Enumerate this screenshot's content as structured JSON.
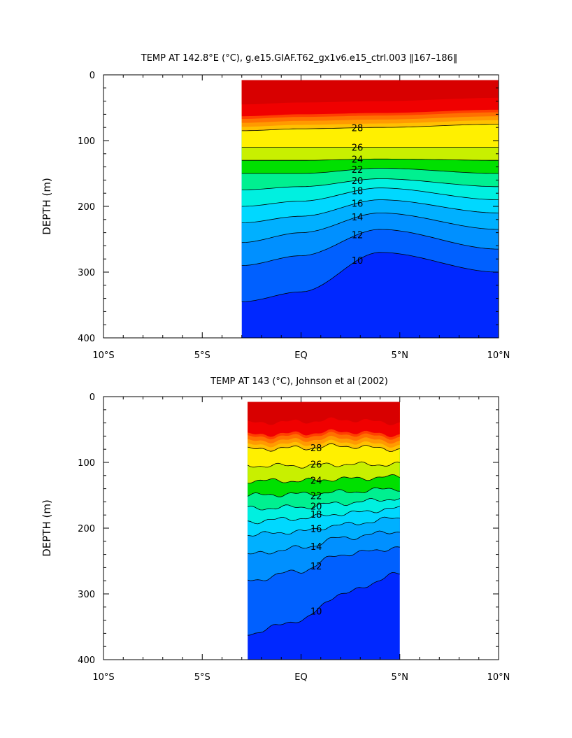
{
  "chart_data": [
    {
      "type": "heatmap",
      "title": "TEMP AT 142.8°E (°C), g.e15.GIAF.T62_gx1v6.e15_ctrl.003 ‖167–186‖",
      "ylabel": "DEPTH (m)",
      "xlabel": "",
      "x_ticks": [
        "10°S",
        "5°S",
        "EQ",
        "5°N",
        "10°N"
      ],
      "y_ticks": [
        "0",
        "100",
        "200",
        "300",
        "400"
      ],
      "xlim": [
        -10,
        10
      ],
      "ylim": [
        0,
        400
      ],
      "y_inverted": true,
      "data_lat_range": [
        -3,
        10
      ],
      "contour_labels": [
        "28",
        "26",
        "24",
        "22",
        "20",
        "18",
        "16",
        "14",
        "12",
        "10"
      ],
      "levels": [
        {
          "t": 28,
          "depths_at_lat": [
            [
              -3,
              85
            ],
            [
              0,
              82
            ],
            [
              4,
              80
            ],
            [
              10,
              75
            ]
          ]
        },
        {
          "t": 26,
          "depths_at_lat": [
            [
              -3,
              110
            ],
            [
              0,
              110
            ],
            [
              4,
              110
            ],
            [
              10,
              110
            ]
          ]
        },
        {
          "t": 24,
          "depths_at_lat": [
            [
              -3,
              130
            ],
            [
              0,
              130
            ],
            [
              4,
              128
            ],
            [
              10,
              130
            ]
          ]
        },
        {
          "t": 22,
          "depths_at_lat": [
            [
              -3,
              150
            ],
            [
              0,
              150
            ],
            [
              4,
              142
            ],
            [
              10,
              150
            ]
          ]
        },
        {
          "t": 20,
          "depths_at_lat": [
            [
              -3,
              175
            ],
            [
              0,
              170
            ],
            [
              4,
              158
            ],
            [
              10,
              170
            ]
          ]
        },
        {
          "t": 18,
          "depths_at_lat": [
            [
              -3,
              200
            ],
            [
              0,
              192
            ],
            [
              4,
              172
            ],
            [
              10,
              190
            ]
          ]
        },
        {
          "t": 16,
          "depths_at_lat": [
            [
              -3,
              225
            ],
            [
              0,
              215
            ],
            [
              4,
              190
            ],
            [
              10,
              210
            ]
          ]
        },
        {
          "t": 14,
          "depths_at_lat": [
            [
              -3,
              255
            ],
            [
              0,
              240
            ],
            [
              4,
              210
            ],
            [
              10,
              235
            ]
          ]
        },
        {
          "t": 12,
          "depths_at_lat": [
            [
              -3,
              290
            ],
            [
              0,
              275
            ],
            [
              4,
              235
            ],
            [
              10,
              265
            ]
          ]
        },
        {
          "t": 10,
          "depths_at_lat": [
            [
              -3,
              345
            ],
            [
              0,
              330
            ],
            [
              4,
              270
            ],
            [
              10,
              300
            ]
          ]
        }
      ]
    },
    {
      "type": "heatmap",
      "title": "TEMP AT 143 (°C), Johnson et al (2002)",
      "ylabel": "DEPTH (m)",
      "xlabel": "",
      "x_ticks": [
        "10°S",
        "5°S",
        "EQ",
        "5°N",
        "10°N"
      ],
      "y_ticks": [
        "0",
        "100",
        "200",
        "300",
        "400"
      ],
      "xlim": [
        -10,
        10
      ],
      "ylim": [
        0,
        400
      ],
      "y_inverted": true,
      "data_lat_range": [
        -2.7,
        5
      ],
      "contour_labels": [
        "28",
        "26",
        "24",
        "22",
        "20",
        "18",
        "16",
        "14",
        "12",
        "10"
      ],
      "levels": [
        {
          "t": 28,
          "depths_at_lat": [
            [
              -2.7,
              80
            ],
            [
              0,
              78
            ],
            [
              2,
              75
            ],
            [
              5,
              80
            ]
          ]
        },
        {
          "t": 26,
          "depths_at_lat": [
            [
              -2.7,
              105
            ],
            [
              0,
              105
            ],
            [
              2,
              103
            ],
            [
              5,
              103
            ]
          ]
        },
        {
          "t": 24,
          "depths_at_lat": [
            [
              -2.7,
              128
            ],
            [
              0,
              128
            ],
            [
              2,
              125
            ],
            [
              5,
              122
            ]
          ]
        },
        {
          "t": 22,
          "depths_at_lat": [
            [
              -2.7,
              150
            ],
            [
              0,
              148
            ],
            [
              2,
              145
            ],
            [
              5,
              140
            ]
          ]
        },
        {
          "t": 20,
          "depths_at_lat": [
            [
              -2.7,
              170
            ],
            [
              0,
              168
            ],
            [
              2,
              162
            ],
            [
              5,
              155
            ]
          ]
        },
        {
          "t": 18,
          "depths_at_lat": [
            [
              -2.7,
              190
            ],
            [
              0,
              185
            ],
            [
              2,
              178
            ],
            [
              5,
              170
            ]
          ]
        },
        {
          "t": 16,
          "depths_at_lat": [
            [
              -2.7,
              210
            ],
            [
              0,
              205
            ],
            [
              2,
              195
            ],
            [
              5,
              185
            ]
          ]
        },
        {
          "t": 14,
          "depths_at_lat": [
            [
              -2.7,
              240
            ],
            [
              0,
              230
            ],
            [
              2,
              215
            ],
            [
              5,
              205
            ]
          ]
        },
        {
          "t": 12,
          "depths_at_lat": [
            [
              -2.7,
              280
            ],
            [
              0,
              265
            ],
            [
              2,
              240
            ],
            [
              5,
              230
            ]
          ]
        },
        {
          "t": 10,
          "depths_at_lat": [
            [
              -2.7,
              360
            ],
            [
              0,
              340
            ],
            [
              2,
              300
            ],
            [
              5,
              270
            ]
          ]
        }
      ]
    }
  ],
  "colors": {
    "above_28": "#d80000",
    "levels": [
      "#f00000",
      "#ff4000",
      "#ff7000",
      "#ff9a00",
      "#ffc000",
      "#fff000",
      "#c8f000",
      "#00e000",
      "#00f090",
      "#00f0e0",
      "#00d8ff",
      "#00b0ff",
      "#0090ff",
      "#0060ff",
      "#0028ff",
      "#5000e0"
    ]
  }
}
